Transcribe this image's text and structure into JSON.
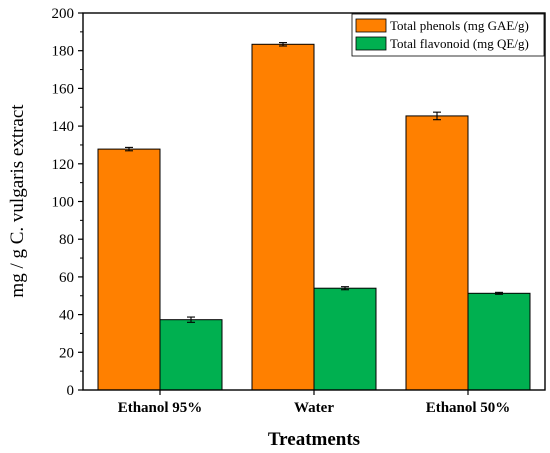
{
  "chart_data": {
    "type": "bar",
    "title": "",
    "xlabel": "Treatments",
    "ylabel": "mg / g C. vulgaris extract",
    "categories": [
      "Ethanol 95%",
      "Water",
      "Ethanol 50%"
    ],
    "ylim": [
      0,
      200
    ],
    "yticks": [
      0,
      20,
      40,
      60,
      80,
      100,
      120,
      140,
      160,
      180,
      200
    ],
    "series": [
      {
        "name": "Total phenols (mg GAE/g)",
        "color": "#ff8000",
        "values": [
          127.8,
          183.4,
          145.4
        ],
        "errors": [
          0.9,
          0.9,
          2.0
        ]
      },
      {
        "name": "Total flavonoid (mg QE/g)",
        "color": "#00b050",
        "values": [
          37.3,
          54.0,
          51.3
        ],
        "errors": [
          1.4,
          0.8,
          0.5
        ]
      }
    ],
    "legend": "top-right",
    "grid": false
  }
}
